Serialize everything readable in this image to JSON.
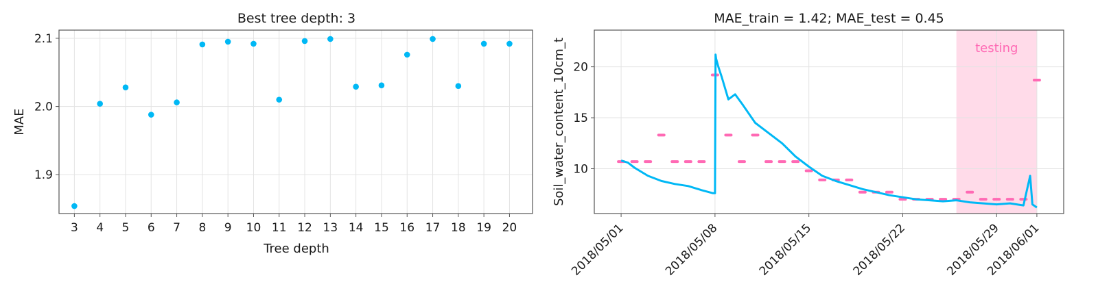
{
  "colors": {
    "series_blue": "#00b8f5",
    "series_pink": "#ff69b4",
    "testing_band": "#ffdbe9",
    "testing_label": "#ff69b4"
  },
  "chart_data": [
    {
      "type": "scatter",
      "title": "Best tree depth: 3",
      "xlabel": "Tree depth",
      "ylabel": "MAE",
      "xlim": [
        2.4,
        20.9
      ],
      "ylim": [
        1.843,
        2.112
      ],
      "xticks": [
        3,
        4,
        5,
        6,
        7,
        8,
        9,
        10,
        11,
        12,
        13,
        14,
        15,
        16,
        17,
        18,
        19,
        20
      ],
      "yticks": [
        1.9,
        2.0,
        2.1
      ],
      "grid": true,
      "x": [
        3,
        4,
        5,
        6,
        7,
        8,
        9,
        10,
        11,
        12,
        13,
        14,
        15,
        16,
        17,
        18,
        19,
        20
      ],
      "y": [
        1.854,
        2.004,
        2.028,
        1.988,
        2.006,
        2.091,
        2.095,
        2.092,
        2.01,
        2.096,
        2.099,
        2.029,
        2.031,
        2.076,
        2.099,
        2.03,
        2.092,
        2.092
      ]
    },
    {
      "type": "line",
      "title": "MAE_train = 1.42; MAE_test = 0.45",
      "xlabel": "",
      "ylabel": "Soil_water_content_10cm_t",
      "x_type": "date",
      "xlim": [
        "2018-04-29",
        "2018-06-03"
      ],
      "ylim": [
        5.6,
        23.6
      ],
      "xticks": [
        "2018/05/01",
        "2018/05/08",
        "2018/05/15",
        "2018/05/22",
        "2018/05/29",
        "2018/06/01"
      ],
      "yticks": [
        10,
        15,
        20
      ],
      "grid": true,
      "testing_region": {
        "start": "2018-05-26",
        "end": "2018-06-01",
        "label": "testing"
      },
      "series": [
        {
          "style": "line",
          "x": [
            "2018-05-01",
            "2018-05-01 12:00",
            "2018-05-02",
            "2018-05-03",
            "2018-05-04",
            "2018-05-05",
            "2018-05-06",
            "2018-05-07",
            "2018-05-07 20:00",
            "2018-05-08",
            "2018-05-08 01:00",
            "2018-05-08 02:00",
            "2018-05-08 06:00",
            "2018-05-08 12:00",
            "2018-05-09",
            "2018-05-09 12:00",
            "2018-05-10",
            "2018-05-11",
            "2018-05-12",
            "2018-05-13",
            "2018-05-14",
            "2018-05-15",
            "2018-05-16",
            "2018-05-17",
            "2018-05-18",
            "2018-05-19",
            "2018-05-20",
            "2018-05-21",
            "2018-05-22",
            "2018-05-23",
            "2018-05-24",
            "2018-05-25",
            "2018-05-26",
            "2018-05-27",
            "2018-05-28",
            "2018-05-29",
            "2018-05-30",
            "2018-05-31",
            "2018-05-31 12:00",
            "2018-05-31 16:00",
            "2018-06-01"
          ],
          "y": [
            10.8,
            10.6,
            10.1,
            9.3,
            8.8,
            8.5,
            8.3,
            7.9,
            7.6,
            7.6,
            21.2,
            20.8,
            20.0,
            19.0,
            16.8,
            17.3,
            16.4,
            14.5,
            13.5,
            12.5,
            11.2,
            10.2,
            9.3,
            8.8,
            8.4,
            8.0,
            7.7,
            7.4,
            7.2,
            7.0,
            6.9,
            6.8,
            6.9,
            6.7,
            6.6,
            6.5,
            6.6,
            6.4,
            9.3,
            6.5,
            6.2
          ]
        },
        {
          "style": "markers",
          "x": [
            "2018-05-01",
            "2018-05-02",
            "2018-05-03",
            "2018-05-04",
            "2018-05-05",
            "2018-05-06",
            "2018-05-07",
            "2018-05-08",
            "2018-05-09",
            "2018-05-10",
            "2018-05-11",
            "2018-05-12",
            "2018-05-13",
            "2018-05-14",
            "2018-05-15",
            "2018-05-16",
            "2018-05-17",
            "2018-05-18",
            "2018-05-19",
            "2018-05-20",
            "2018-05-21",
            "2018-05-22",
            "2018-05-23",
            "2018-05-24",
            "2018-05-25",
            "2018-05-26",
            "2018-05-27",
            "2018-05-28",
            "2018-05-29",
            "2018-05-30",
            "2018-05-31",
            "2018-06-01"
          ],
          "y": [
            10.7,
            10.7,
            10.7,
            13.3,
            10.7,
            10.7,
            10.7,
            19.2,
            13.3,
            10.7,
            13.3,
            10.7,
            10.7,
            10.7,
            9.8,
            8.9,
            8.9,
            8.9,
            7.7,
            7.7,
            7.7,
            7.0,
            7.0,
            7.0,
            7.0,
            7.0,
            7.7,
            7.0,
            7.0,
            7.0,
            7.0,
            18.7
          ]
        }
      ]
    }
  ]
}
